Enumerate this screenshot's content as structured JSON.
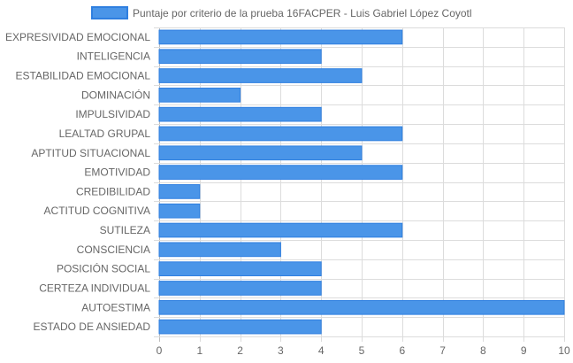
{
  "chart_data": {
    "type": "bar",
    "orientation": "horizontal",
    "legend_position": "top",
    "grid": true,
    "xlim": [
      0,
      10
    ],
    "x_ticks": [
      "0",
      "1",
      "2",
      "3",
      "4",
      "5",
      "6",
      "7",
      "8",
      "9",
      "10"
    ],
    "categories": [
      "EXPRESIVIDAD EMOCIONAL",
      "INTELIGENCIA",
      "ESTABILIDAD EMOCIONAL",
      "DOMINACIÓN",
      "IMPULSIVIDAD",
      "LEALTAD GRUPAL",
      "APTITUD SITUACIONAL",
      "EMOTIVIDAD",
      "CREDIBILIDAD",
      "ACTITUD COGNITIVA",
      "SUTILEZA",
      "CONSCIENCIA",
      "POSICIÓN SOCIAL",
      "CERTEZA INDIVIDUAL",
      "AUTOESTIMA",
      "ESTADO DE ANSIEDAD"
    ],
    "series": [
      {
        "name": "Puntaje por criterio de la prueba 16FACPER - Luis Gabriel López Coyotl",
        "values": [
          6,
          4,
          5,
          2,
          4,
          6,
          5,
          6,
          1,
          1,
          6,
          3,
          4,
          4,
          10,
          4
        ],
        "color": "#4a95e8",
        "border_color": "#2f7fe0"
      }
    ],
    "grid_color": "#dcdcdc",
    "label_color": "#666666"
  }
}
